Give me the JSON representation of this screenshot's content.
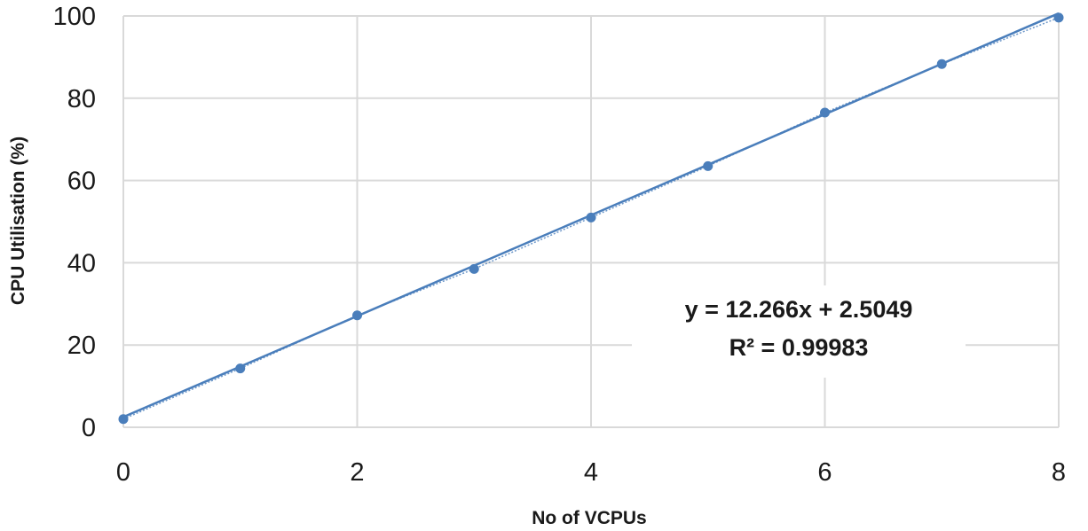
{
  "chart_data": {
    "type": "scatter",
    "xlabel": "No of VCPUs",
    "ylabel": "CPU Utilisation (%)",
    "xlim": [
      0,
      8
    ],
    "ylim": [
      0,
      100
    ],
    "x_ticks": [
      "0",
      "2",
      "4",
      "6",
      "8"
    ],
    "y_ticks": [
      "0",
      "20",
      "40",
      "60",
      "80",
      "100"
    ],
    "grid": true,
    "series": [
      {
        "x": [
          0,
          1,
          2,
          3,
          4,
          5,
          6,
          7,
          8
        ],
        "y": [
          2.0,
          14.3,
          27.2,
          38.5,
          51.0,
          63.5,
          76.5,
          88.3,
          99.6
        ],
        "color": "#4a7ebb"
      }
    ],
    "trendline": {
      "type": "linear",
      "slope": 12.266,
      "intercept": 2.5049,
      "color": "#4a7ebb"
    },
    "annotations": {
      "equation": "y = 12.266x + 2.5049",
      "r_squared": "R² = 0.99983"
    }
  }
}
